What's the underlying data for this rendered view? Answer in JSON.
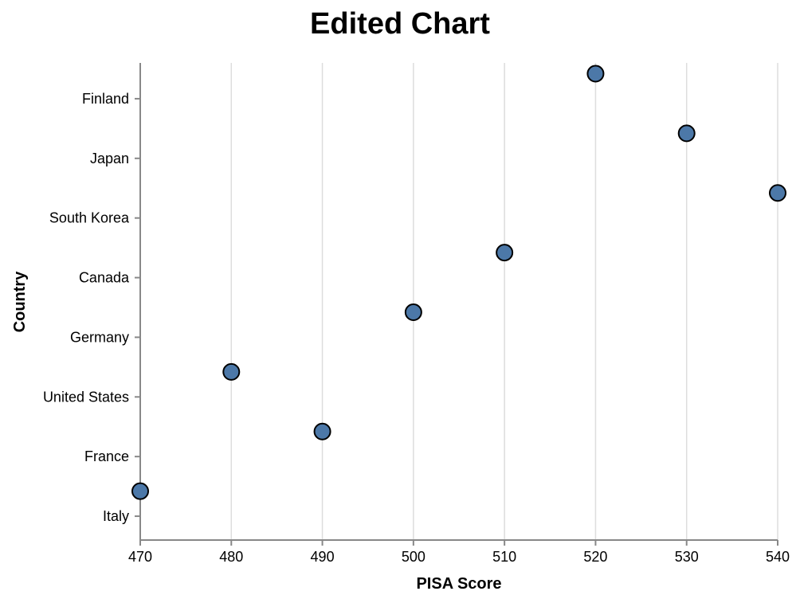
{
  "chart_data": {
    "type": "scatter",
    "title": "Edited Chart",
    "xlabel": "PISA Score",
    "ylabel": "Country",
    "xlim": [
      470,
      540
    ],
    "x_ticks": [
      470,
      480,
      490,
      500,
      510,
      520,
      530,
      540
    ],
    "categories": [
      "Finland",
      "Japan",
      "South Korea",
      "Canada",
      "Germany",
      "United States",
      "France",
      "Italy"
    ],
    "points": [
      {
        "country": "Finland",
        "score": 520
      },
      {
        "country": "Japan",
        "score": 530
      },
      {
        "country": "South Korea",
        "score": 540
      },
      {
        "country": "Canada",
        "score": 510
      },
      {
        "country": "Germany",
        "score": 500
      },
      {
        "country": "United States",
        "score": 480
      },
      {
        "country": "France",
        "score": 490
      },
      {
        "country": "Italy",
        "score": 470
      }
    ],
    "grid": "vertical",
    "legend": "none",
    "colors": {
      "point_fill": "#4c78a8",
      "point_stroke": "#000000"
    }
  }
}
